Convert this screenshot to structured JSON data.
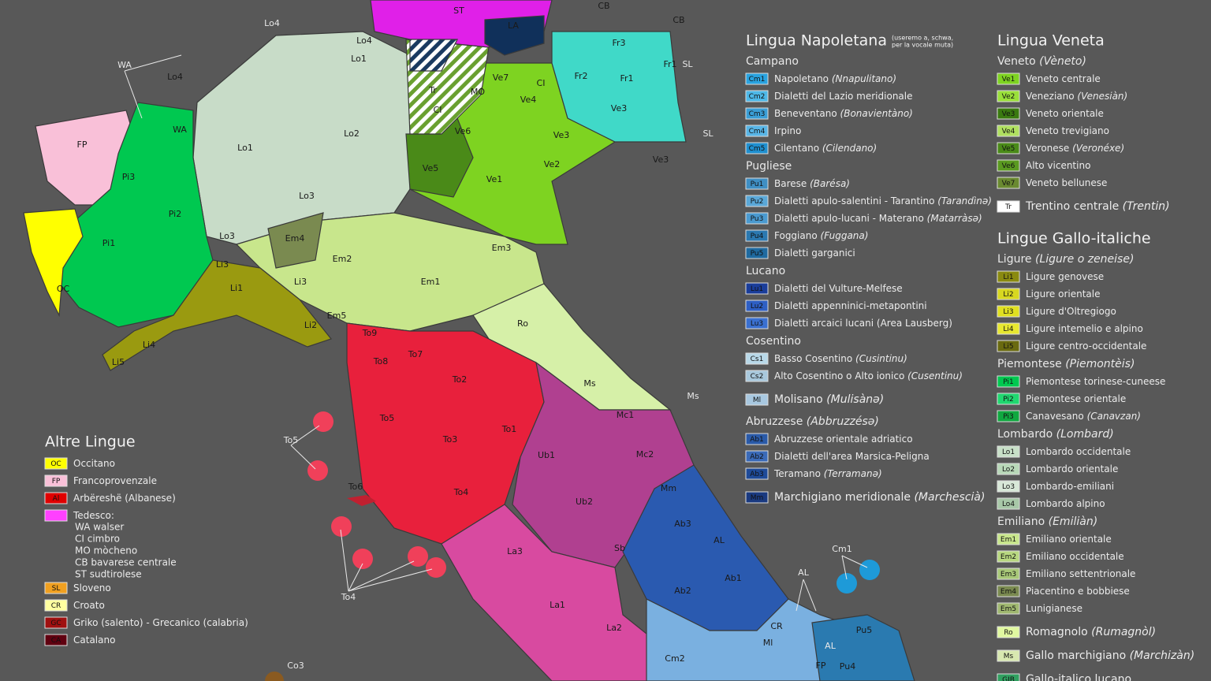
{
  "legends": [
    {
      "title": "Lingua Napoletana",
      "note": [
        "(useremo a, schwa,",
        "per la vocale muta)"
      ],
      "sections": [
        {
          "subtitle": "Campano",
          "items": [
            {
              "code": "Cm1",
              "color": "#29a3e0",
              "name": "Napoletano",
              "native": "(Nnapulitano)"
            },
            {
              "code": "Cm2",
              "color": "#4db8e8",
              "name": "Dialetti del Lazio meridionale"
            },
            {
              "code": "Cm3",
              "color": "#3a9ed6",
              "name": "Beneventano",
              "native": "(Bonavientàno)"
            },
            {
              "code": "Cm4",
              "color": "#58b5e6",
              "name": "Irpino"
            },
            {
              "code": "Cm5",
              "color": "#1f8fcf",
              "name": "Cilentano",
              "native": "(Cilendano)"
            }
          ]
        },
        {
          "subtitle": "Pugliese",
          "items": [
            {
              "code": "Pu1",
              "color": "#3f8fc4",
              "name": "Barese",
              "native": "(Barésa)"
            },
            {
              "code": "Pu2",
              "color": "#5aa8d8",
              "name": "Dialetti apulo-salentini - Tarantino",
              "native": "(Tarandìnə)"
            },
            {
              "code": "Pu3",
              "color": "#4a9ad0",
              "name": "Dialetti apulo-lucani - Materano",
              "native": "(Matarràsə)"
            },
            {
              "code": "Pu4",
              "color": "#2a78b0",
              "name": "Foggiano",
              "native": "(Fuggana)"
            },
            {
              "code": "Pu5",
              "color": "#1f6aa0",
              "name": "Dialetti garganici"
            }
          ]
        },
        {
          "subtitle": "Lucano",
          "items": [
            {
              "code": "Lu1",
              "color": "#1a3d9a",
              "name": "Dialetti del Vulture-Melfese"
            },
            {
              "code": "Lu2",
              "color": "#2e5fc4",
              "name": "Dialetti appenninici-metapontini"
            },
            {
              "code": "Lu3",
              "color": "#3a70d0",
              "name": "Dialetti arcaici lucani (Area Lausberg)"
            }
          ]
        },
        {
          "subtitle": "Cosentino",
          "items": [
            {
              "code": "Cs1",
              "color": "#b8d8e8",
              "name": "Basso Cosentino",
              "native": "(Cusintinu)"
            },
            {
              "code": "Cs2",
              "color": "#a8c8dc",
              "name": "Alto Cosentino o Alto ionico",
              "native": "(Cusentinu)"
            }
          ]
        },
        {
          "items": [
            {
              "code": "Ml",
              "color": "#a8c8e0",
              "name": "Molisano",
              "native": "(Mulisànə)"
            }
          ]
        },
        {
          "subtitle": "Abruzzese",
          "subtitle_native": "(Abbruzzésə)",
          "items": [
            {
              "code": "Ab1",
              "color": "#2a5aa8",
              "name": "Abruzzese orientale adriatico"
            },
            {
              "code": "Ab2",
              "color": "#3a6ab8",
              "name": "Dialetti dell'area Marsica-Peligna"
            },
            {
              "code": "Ab3",
              "color": "#1e4a98",
              "name": "Teramano",
              "native": "(Terramanə)"
            }
          ]
        },
        {
          "items": [
            {
              "code": "Mm",
              "color": "#1a3a80",
              "name": "Marchigiano meridionale",
              "native": "(Marchescià)"
            }
          ]
        }
      ]
    },
    {
      "title": "Lingua Veneta",
      "sections": [
        {
          "subtitle": "Veneto",
          "subtitle_native": "(Vèneto)",
          "items": [
            {
              "code": "Ve1",
              "color": "#7ed321",
              "name": "Veneto centrale"
            },
            {
              "code": "Ve2",
              "color": "#9ae03a",
              "name": "Veneziano",
              "native": "(Venesiàn)"
            },
            {
              "code": "Ve3",
              "color": "#3a7a10",
              "name": "Veneto orientale"
            },
            {
              "code": "Ve4",
              "color": "#b0e060",
              "name": "Veneto trevigiano"
            },
            {
              "code": "Ve5",
              "color": "#4a8a18",
              "name": "Veronese",
              "native": "(Veronéxe)"
            },
            {
              "code": "Ve6",
              "color": "#5a9a20",
              "name": "Alto vicentino"
            },
            {
              "code": "Ve7",
              "color": "#6a8a30",
              "name": "Veneto bellunese"
            }
          ]
        },
        {
          "items": [
            {
              "code": "Tr",
              "color": "#ffffff",
              "name": "Trentino centrale",
              "native": "(Trentin)"
            }
          ]
        }
      ]
    },
    {
      "title": "Lingue Gallo-italiche",
      "sections": [
        {
          "subtitle": "Ligure",
          "subtitle_native": "(Ligure o zeneise)",
          "items": [
            {
              "code": "Li1",
              "color": "#8a8a10",
              "name": "Ligure genovese"
            },
            {
              "code": "Li2",
              "color": "#d8d820",
              "name": "Ligure orientale"
            },
            {
              "code": "Li3",
              "color": "#e0e020",
              "name": "Ligure d'Oltregiogo"
            },
            {
              "code": "Li4",
              "color": "#e8e830",
              "name": "Ligure intemelio e alpino"
            },
            {
              "code": "Li5",
              "color": "#6a6a10",
              "name": "Ligure centro-occidentale"
            }
          ]
        },
        {
          "subtitle": "Piemontese",
          "subtitle_native": "(Piemontèis)",
          "items": [
            {
              "code": "Pi1",
              "color": "#00c850",
              "name": "Piemontese torinese-cuneese"
            },
            {
              "code": "Pi2",
              "color": "#20d870",
              "name": "Piemontese orientale"
            },
            {
              "code": "Pi3",
              "color": "#10a840",
              "name": "Canavesano",
              "native": "(Canavzan)"
            }
          ]
        },
        {
          "subtitle": "Lombardo",
          "subtitle_native": "(Lombard)",
          "items": [
            {
              "code": "Lo1",
              "color": "#c8e0c8",
              "name": "Lombardo occidentale"
            },
            {
              "code": "Lo2",
              "color": "#b8d8b8",
              "name": "Lombardo orientale"
            },
            {
              "code": "Lo3",
              "color": "#d8e8d8",
              "name": "Lombardo-emiliani"
            },
            {
              "code": "Lo4",
              "color": "#a8c8a8",
              "name": "Lombardo alpino"
            }
          ]
        },
        {
          "subtitle": "Emiliano",
          "subtitle_native": "(Emiliàn)",
          "items": [
            {
              "code": "Em1",
              "color": "#c8e68c",
              "name": "Emiliano orientale"
            },
            {
              "code": "Em2",
              "color": "#b8d880",
              "name": "Emiliano occidentale"
            },
            {
              "code": "Em3",
              "color": "#a8c878",
              "name": "Emiliano settentrionale"
            },
            {
              "code": "Em4",
              "color": "#7a8a50",
              "name": "Piacentino e bobbiese"
            },
            {
              "code": "Em5",
              "color": "#a0b870",
              "name": "Lunigianese"
            }
          ]
        },
        {
          "items": [
            {
              "code": "Ro",
              "color": "#e0f8a0",
              "name": "Romagnolo",
              "native": "(Rumagnòl)"
            }
          ]
        },
        {
          "items": [
            {
              "code": "Ms",
              "color": "#d8e8b0",
              "name": "Gallo marchigiano",
              "native": "(Marchizàn)"
            }
          ]
        },
        {
          "items": [
            {
              "code": "GIB",
              "color": "#30a060",
              "name": "Gallo-italico lucano"
            }
          ]
        }
      ]
    },
    {
      "title": "Altre Lingue",
      "sections": [
        {
          "items": [
            {
              "code": "OC",
              "color": "#ffff00",
              "name": "Occitano"
            },
            {
              "code": "FP",
              "color": "#f9c0d8",
              "name": "Francoprovenzale"
            },
            {
              "code": "Al",
              "color": "#e00000",
              "name": "Arbëreshë (Albanese)"
            },
            {
              "color": "#ff40ff",
              "name": "Tedesco:",
              "sublines": [
                "WA walser",
                "CI cimbro",
                "MO mòcheno",
                "CB bavarese centrale",
                "ST sudtirolese"
              ]
            },
            {
              "code": "SL",
              "color": "#f0a020",
              "name": "Sloveno"
            },
            {
              "code": "CR",
              "color": "#ffffa0",
              "name": "Croato"
            },
            {
              "code": "GC",
              "color": "#a01010",
              "name": "Griko (salento) - Grecanico (calabria)"
            },
            {
              "code": "CA",
              "color": "#600010",
              "name": "Catalano"
            }
          ]
        }
      ]
    }
  ],
  "map": {
    "labels": [
      "ST",
      "LA",
      "CB",
      "CB",
      "Fr3",
      "Lo4",
      "Lo4",
      "Lo1",
      "WA",
      "Lo4",
      "Fr2",
      "Fr1",
      "Fr1",
      "SL",
      "Ve7",
      "MO",
      "CI",
      "Ve4",
      "Tr",
      "CI",
      "Ve3",
      "WA",
      "FP",
      "Lo1",
      "Lo2",
      "Ve6",
      "Ve3",
      "SL",
      "Ve3",
      "Pi3",
      "Ve5",
      "Ve1",
      "Ve2",
      "Lo3",
      "Pi2",
      "Lo3",
      "Em4",
      "Em2",
      "Em3",
      "Pi1",
      "Li3",
      "Li3",
      "Em1",
      "Li1",
      "OC",
      "Em5",
      "Ro",
      "Li2",
      "To9",
      "To7",
      "To8",
      "Li4",
      "Li5",
      "To2",
      "Ms",
      "Ms",
      "To5",
      "Mc1",
      "To1",
      "To3",
      "To5",
      "Ub1",
      "Mc2",
      "To4",
      "To6",
      "Mm",
      "Ub2",
      "Ab3",
      "AL",
      "Sb",
      "La3",
      "Cm1",
      "Ab1",
      "AL",
      "Ab2",
      "La1",
      "CR",
      "Pu5",
      "La2",
      "AL",
      "Ml",
      "To4",
      "Cm2",
      "FP",
      "Pu4",
      "Co3"
    ]
  }
}
